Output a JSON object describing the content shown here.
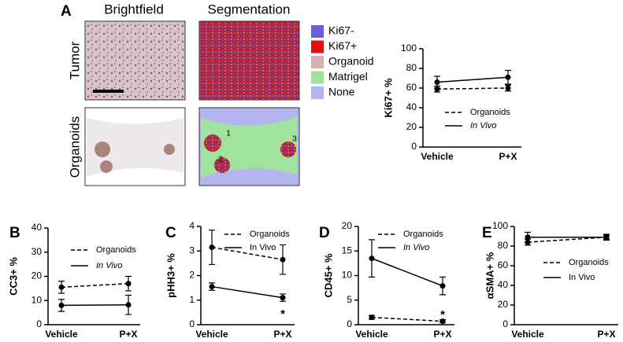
{
  "panel_a": {
    "columns": [
      "Brightfield",
      "Segmentation"
    ],
    "rows": [
      "Tumor",
      "Organoids"
    ],
    "legend": [
      "Ki67-",
      "Ki67+",
      "Organoid",
      "Matrigel",
      "None"
    ],
    "legend_colors": [
      "#6a5fd8",
      "#e01010",
      "#d8b0b0",
      "#9fe39f",
      "#b4b4f0"
    ],
    "region_labels": [
      "1",
      "2",
      "3"
    ]
  },
  "chart_data": [
    {
      "type": "line",
      "label": "A",
      "ylabel": "Ki67+ %",
      "categories": [
        "Vehicle",
        "P+X"
      ],
      "ylim": [
        0,
        100
      ],
      "yticks": [
        0,
        20,
        40,
        60,
        80,
        100
      ],
      "series": [
        {
          "name": "Organoids",
          "color": "#000000",
          "dashed": true,
          "italic": false,
          "values": [
            59,
            60
          ],
          "errors": [
            3,
            3
          ]
        },
        {
          "name": "In Vivo",
          "color": "#000000",
          "dashed": false,
          "italic": true,
          "values": [
            66,
            71
          ],
          "errors": [
            6,
            7
          ]
        }
      ]
    },
    {
      "type": "line",
      "label": "B",
      "ylabel": "CC3+ %",
      "categories": [
        "Vehicle",
        "P+X"
      ],
      "ylim": [
        0,
        40
      ],
      "yticks": [
        0,
        10,
        20,
        30,
        40
      ],
      "series": [
        {
          "name": "Organoids",
          "color": "#000000",
          "dashed": true,
          "italic": false,
          "values": [
            15.5,
            17
          ],
          "errors": [
            2.5,
            3
          ]
        },
        {
          "name": "In Vivo",
          "color": "#000000",
          "dashed": false,
          "italic": true,
          "values": [
            8,
            8.2
          ],
          "errors": [
            2.5,
            4
          ]
        }
      ]
    },
    {
      "type": "line",
      "label": "C",
      "ylabel": "pHH3+ %",
      "categories": [
        "Vehicle",
        "P+X"
      ],
      "ylim": [
        0,
        4
      ],
      "yticks": [
        0,
        1,
        2,
        3,
        4
      ],
      "annotation": "*",
      "series": [
        {
          "name": "Organoids",
          "color": "#000000",
          "dashed": true,
          "italic": false,
          "values": [
            3.15,
            2.65
          ],
          "errors": [
            0.7,
            0.6
          ]
        },
        {
          "name": "In Vivo",
          "color": "#000000",
          "dashed": false,
          "italic": false,
          "values": [
            1.55,
            1.1
          ],
          "errors": [
            0.15,
            0.15
          ]
        }
      ]
    },
    {
      "type": "line",
      "label": "D",
      "ylabel": "CD45+ %",
      "categories": [
        "Vehicle",
        "P+X"
      ],
      "ylim": [
        0,
        20
      ],
      "yticks": [
        0,
        5,
        10,
        15,
        20
      ],
      "annotation": "*",
      "series": [
        {
          "name": "Organoids",
          "color": "#000000",
          "dashed": true,
          "italic": false,
          "values": [
            1.5,
            0.7
          ],
          "errors": [
            0.4,
            0.3
          ]
        },
        {
          "name": "In Vivo",
          "color": "#000000",
          "dashed": false,
          "italic": true,
          "values": [
            13.5,
            7.9
          ],
          "errors": [
            3.8,
            1.8
          ]
        }
      ]
    },
    {
      "type": "line",
      "label": "E",
      "ylabel": "αSMA+ %",
      "categories": [
        "Vehicle",
        "P+X"
      ],
      "ylim": [
        0,
        100
      ],
      "yticks": [
        0,
        20,
        40,
        60,
        80,
        100
      ],
      "series": [
        {
          "name": "Organoids",
          "color": "#000000",
          "dashed": true,
          "italic": false,
          "values": [
            84,
            89
          ],
          "errors": [
            3,
            2
          ]
        },
        {
          "name": "In Vivo",
          "color": "#000000",
          "dashed": false,
          "italic": false,
          "values": [
            89,
            89
          ],
          "errors": [
            5,
            3
          ]
        }
      ]
    }
  ]
}
